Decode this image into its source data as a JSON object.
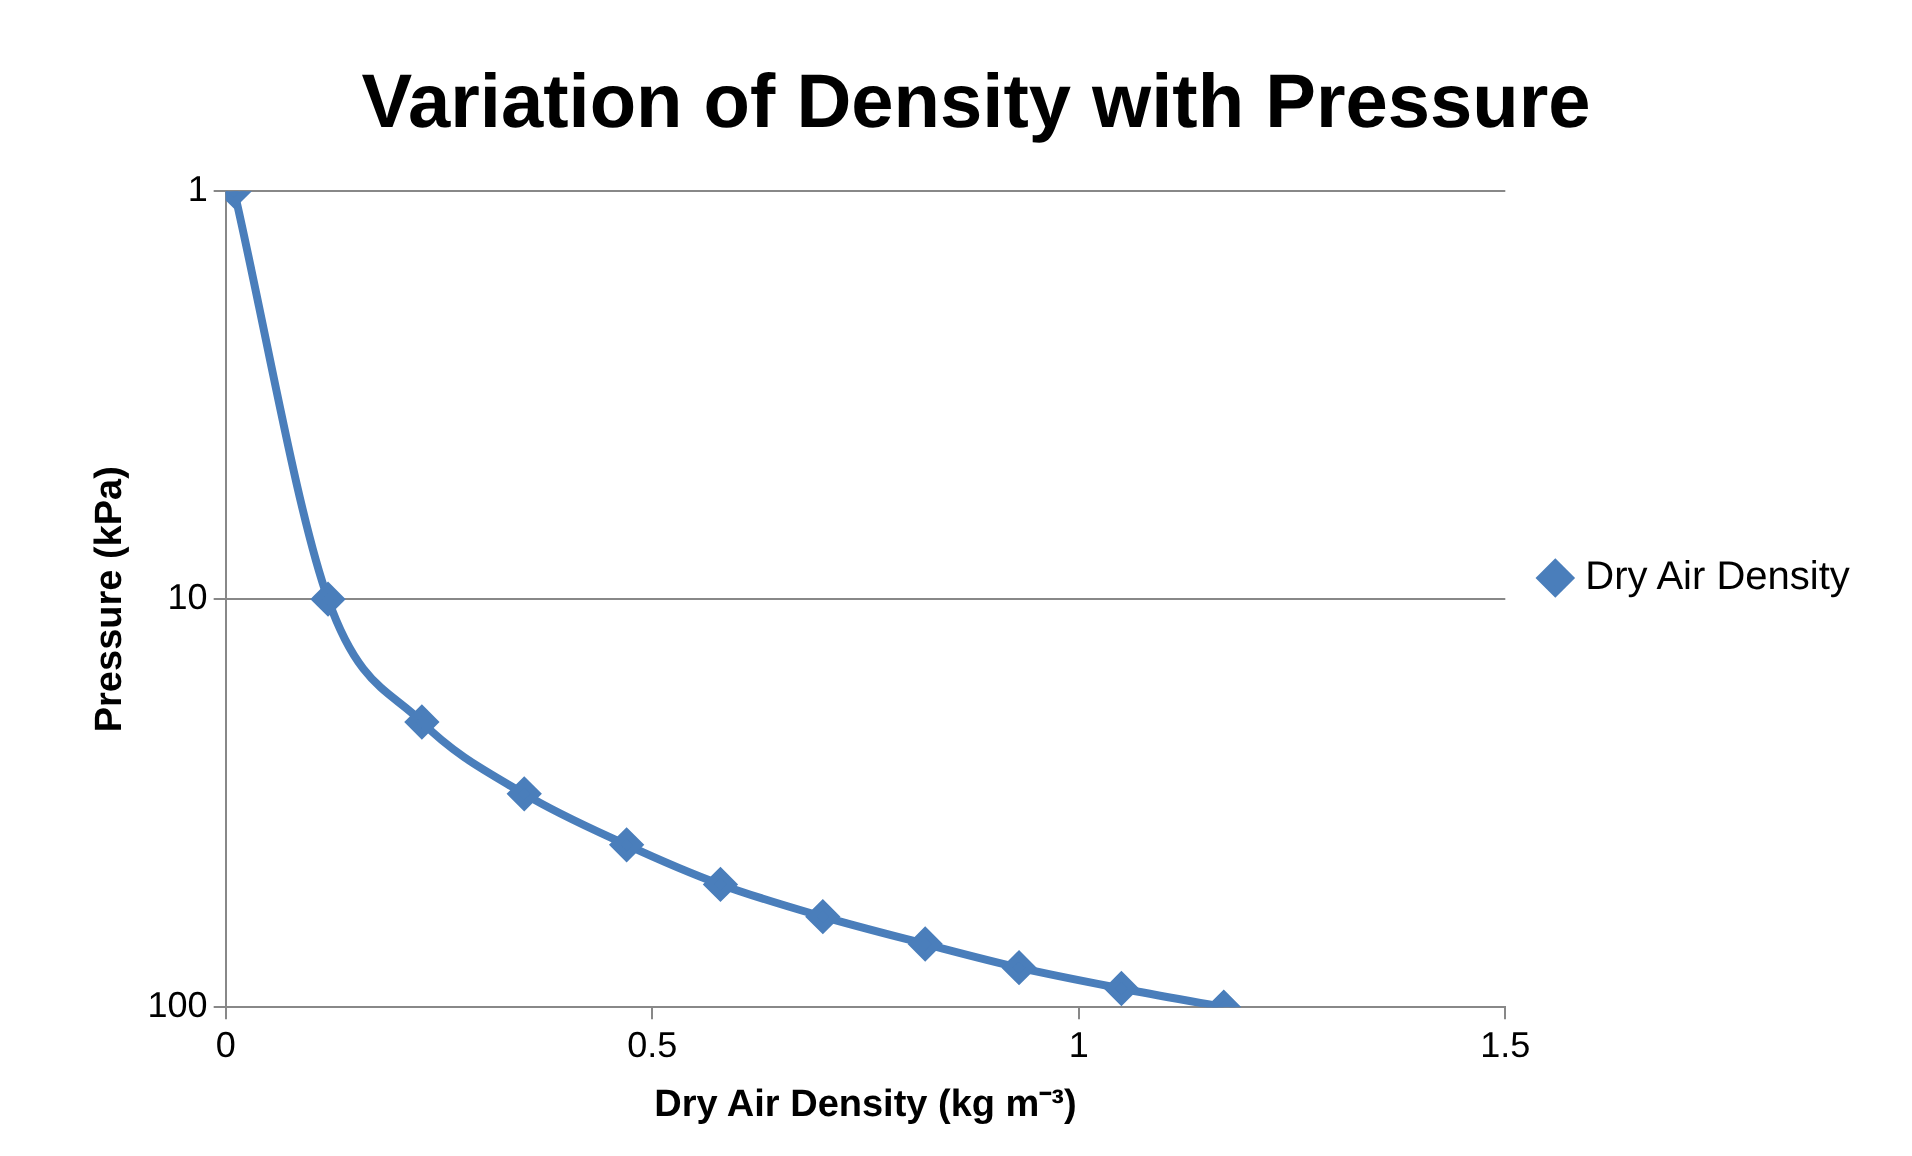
{
  "chart_data": {
    "type": "line",
    "title": "Variation of Density with Pressure",
    "xlabel": "Dry Air Density (kg m⁻³)",
    "ylabel": "Pressure (kPa)",
    "x": [
      0.01,
      0.12,
      0.23,
      0.35,
      0.47,
      0.58,
      0.7,
      0.82,
      0.93,
      1.05,
      1.17
    ],
    "series": [
      {
        "name": "Dry Air Density",
        "color": "#4a7ebb",
        "values": [
          1,
          10,
          20,
          30,
          40,
          50,
          60,
          70,
          80,
          90,
          100
        ]
      }
    ],
    "xlim": [
      0,
      1.5
    ],
    "xticks": [
      0,
      0.5,
      1,
      1.5
    ],
    "ylim": [
      100,
      1
    ],
    "yticks": [
      1,
      10,
      100
    ],
    "log": "y",
    "grid": "y",
    "legend": "right",
    "marker": "diamond",
    "line_style": "solid"
  }
}
